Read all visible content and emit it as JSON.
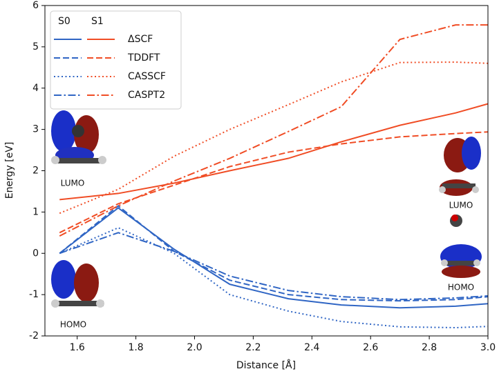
{
  "chart_data": {
    "type": "line",
    "xlabel": "Distance [Å]",
    "ylabel": "Energy [eV]",
    "x": [
      1.54,
      1.74,
      1.93,
      2.12,
      2.32,
      2.5,
      2.7,
      2.89,
      3.0
    ],
    "states": [
      {
        "name": "S0",
        "color": "#2f65c4"
      },
      {
        "name": "S1",
        "color": "#f04c24"
      }
    ],
    "series": [
      {
        "name": "ΔSCF",
        "linestyle": "solid",
        "values": [
          [
            0,
            1.1,
            0.1,
            -0.75,
            -1.1,
            -1.25,
            -1.32,
            -1.28,
            -1.22
          ],
          [
            1.3,
            1.45,
            1.7,
            2.0,
            2.3,
            2.7,
            3.1,
            3.4,
            3.62
          ]
        ]
      },
      {
        "name": "TDDFT",
        "linestyle": "dashed",
        "values": [
          [
            0,
            1.15,
            0.05,
            -0.65,
            -1.0,
            -1.12,
            -1.15,
            -1.12,
            -1.05
          ],
          [
            0.5,
            1.2,
            1.65,
            2.1,
            2.45,
            2.65,
            2.82,
            2.9,
            2.94
          ]
        ]
      },
      {
        "name": "CASSCF",
        "linestyle": "dotted",
        "values": [
          [
            0,
            0.62,
            0.0,
            -1.0,
            -1.4,
            -1.65,
            -1.78,
            -1.8,
            -1.77
          ],
          [
            0.97,
            1.55,
            2.35,
            3.0,
            3.6,
            4.15,
            4.62,
            4.63,
            4.6
          ]
        ]
      },
      {
        "name": "CASPT2",
        "linestyle": "dashdot",
        "values": [
          [
            0,
            0.5,
            0.05,
            -0.55,
            -0.9,
            -1.05,
            -1.12,
            -1.08,
            -1.03
          ],
          [
            0.42,
            1.15,
            1.75,
            2.3,
            2.95,
            3.55,
            5.18,
            5.53,
            5.53
          ]
        ]
      }
    ],
    "xlim": [
      1.49,
      3.0
    ],
    "xticks": [
      1.6,
      1.8,
      {
        "value": 2,
        "label": "2.0"
      },
      2.2,
      2.4,
      2.6,
      2.8,
      {
        "value": 3,
        "label": "3.0"
      }
    ],
    "ylim": [
      -2,
      6
    ],
    "yticks": [
      -2,
      -1,
      0,
      1,
      2,
      3,
      4,
      5,
      6
    ],
    "annotations": [
      "LUMO",
      "HOMO",
      "LUMO",
      "HOMO"
    ]
  }
}
